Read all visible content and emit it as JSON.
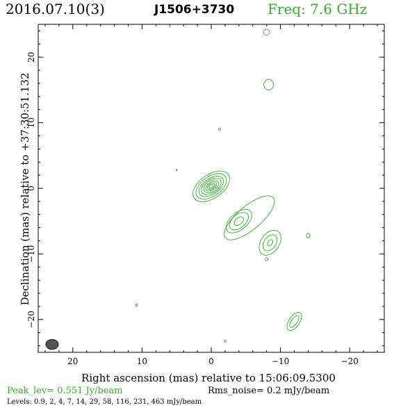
{
  "header": {
    "epoch": "2016.07.10(3)",
    "source": "J1506+3730",
    "frequency": "Freq: 7.6 GHz"
  },
  "footer": {
    "peak": "Peak_lev=  0.551 Jy/beam",
    "rms": "Rms_noise=  0.2 mJy/beam",
    "levels": "Levels: 0.9,   2,   4,   7,  14,  29,  58, 116, 231, 463 mJy/beam"
  },
  "chart_data": {
    "type": "contour",
    "title": "J1506+3730",
    "xlabel": "Right ascension (mas) relative to 15:06:09.5300",
    "ylabel": "Declination (mas) relative to +37:30:51.132",
    "xlim": [
      25,
      -25
    ],
    "ylim": [
      -25,
      25
    ],
    "x_ticks": [
      20,
      10,
      0,
      -10,
      -20
    ],
    "y_ticks": [
      20,
      10,
      0,
      -10,
      -20
    ],
    "x_tick_labels": [
      "20",
      "10",
      "0",
      "−10",
      "−20"
    ],
    "y_tick_labels": [
      "20",
      "10",
      "0",
      "−10",
      "−20"
    ],
    "contour_color": "#3aa832",
    "beam_color": "#555555",
    "levels_mJy_per_beam": [
      0.9,
      2,
      4,
      7,
      14,
      29,
      58,
      116,
      231,
      463
    ],
    "peak_Jy_per_beam": 0.551,
    "rms_noise_mJy_per_beam": 0.2,
    "beam": {
      "x": 23,
      "y": -23.8,
      "major": 1.8,
      "minor": 1.5,
      "angle_deg": 0
    },
    "features": [
      {
        "name": "core",
        "x": 0.0,
        "y": 0.3,
        "nested": [
          [
            3.0,
            1.8,
            -35
          ],
          [
            2.5,
            1.5,
            -35
          ],
          [
            2.0,
            1.2,
            -35
          ],
          [
            1.6,
            1.0,
            -35
          ],
          [
            1.2,
            0.8,
            -35
          ],
          [
            0.9,
            0.55,
            -35
          ],
          [
            0.6,
            0.38,
            -35
          ],
          [
            0.35,
            0.22,
            -35
          ]
        ]
      },
      {
        "name": "jet-knot-1",
        "x": -4.0,
        "y": -5.0,
        "nested": [
          [
            2.2,
            1.3,
            -40
          ],
          [
            1.6,
            1.0,
            -40
          ],
          [
            0.8,
            0.5,
            -40
          ]
        ]
      },
      {
        "name": "jet-knot-2",
        "x": -8.5,
        "y": -8.3,
        "nested": [
          [
            2.0,
            1.4,
            -55
          ],
          [
            1.3,
            0.9,
            -55
          ],
          [
            0.5,
            0.35,
            -55
          ]
        ]
      },
      {
        "name": "jet-bridge",
        "x": -5.5,
        "y": -4.5,
        "nested": [
          [
            4.5,
            1.8,
            -40
          ]
        ]
      },
      {
        "name": "south-knot",
        "x": -12.0,
        "y": -20.3,
        "nested": [
          [
            1.5,
            0.8,
            -55
          ],
          [
            1.0,
            0.45,
            -55
          ]
        ]
      },
      {
        "name": "north-blob-1",
        "x": -8.3,
        "y": 15.8,
        "nested": [
          [
            0.7,
            0.8,
            0
          ]
        ]
      },
      {
        "name": "north-blob-2",
        "x": -8.0,
        "y": 23.8,
        "nested": [
          [
            0.45,
            0.45,
            0
          ]
        ]
      },
      {
        "name": "noise-1",
        "x": -14.0,
        "y": -7.2,
        "nested": [
          [
            0.25,
            0.35,
            0
          ]
        ]
      },
      {
        "name": "noise-2",
        "x": -8.0,
        "y": -10.8,
        "nested": [
          [
            0.2,
            0.25,
            0
          ]
        ]
      },
      {
        "name": "noise-3",
        "x": -1.2,
        "y": 9.0,
        "nested": [
          [
            0.15,
            0.2,
            0
          ]
        ]
      },
      {
        "name": "noise-4",
        "x": 10.8,
        "y": -17.8,
        "nested": [
          [
            0.12,
            0.18,
            0
          ]
        ]
      },
      {
        "name": "noise-5",
        "x": -2.0,
        "y": -23.3,
        "nested": [
          [
            0.12,
            0.15,
            0
          ]
        ]
      },
      {
        "name": "noise-6",
        "x": 5.0,
        "y": 2.8,
        "nested": [
          [
            0.08,
            0.1,
            0
          ]
        ]
      }
    ]
  }
}
